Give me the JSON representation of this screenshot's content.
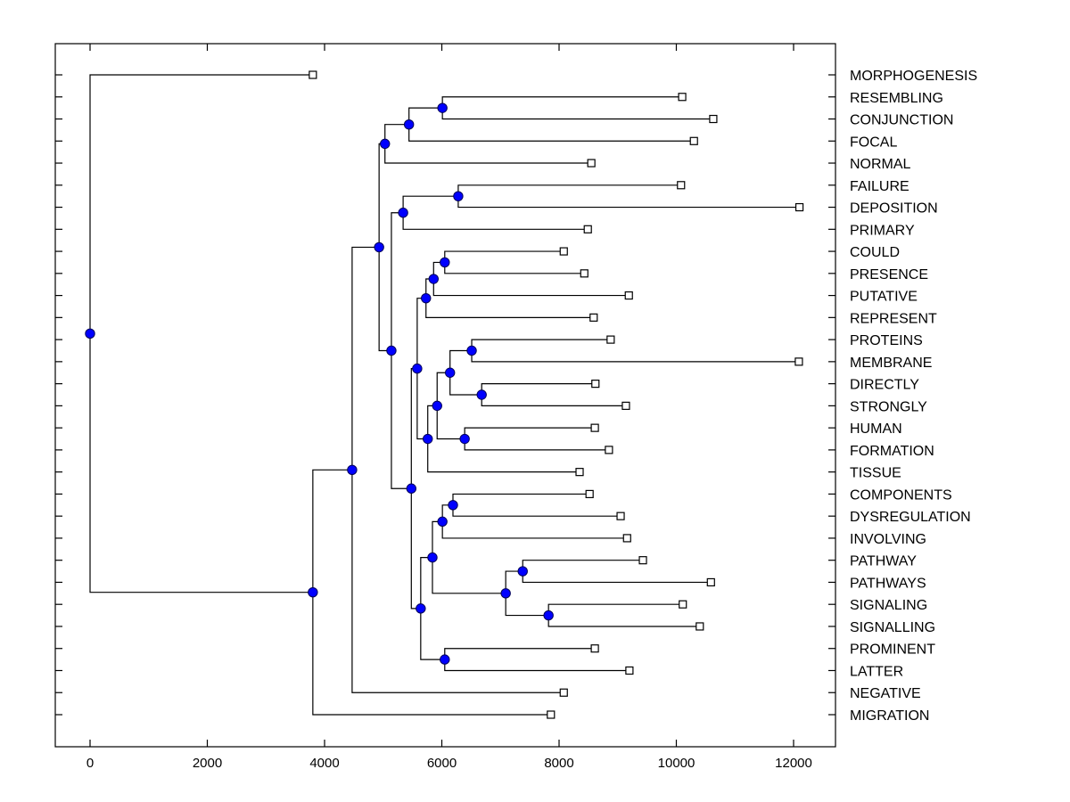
{
  "chart_data": {
    "type": "dendrogram",
    "title": "",
    "xlabel": "",
    "ylabel": "",
    "xlim": [
      -600,
      12700
    ],
    "xticks": [
      0,
      2000,
      4000,
      6000,
      8000,
      10000,
      12000
    ],
    "xtick_labels": [
      "0",
      "2000",
      "4000",
      "6000",
      "8000",
      "10000",
      "12000"
    ],
    "grid": false,
    "leaf_marker": "open-square",
    "node_marker": "blue-circle",
    "node_color": "#0000ff",
    "line_color": "#000000",
    "leaves": [
      {
        "label": "MORPHOGENESIS",
        "value": 3800
      },
      {
        "label": "RESEMBLING",
        "value": 10100
      },
      {
        "label": "CONJUNCTION",
        "value": 10630
      },
      {
        "label": "FOCAL",
        "value": 10300
      },
      {
        "label": "NORMAL",
        "value": 8550
      },
      {
        "label": "FAILURE",
        "value": 10080
      },
      {
        "label": "DEPOSITION",
        "value": 12100
      },
      {
        "label": "PRIMARY",
        "value": 8490
      },
      {
        "label": "COULD",
        "value": 8080
      },
      {
        "label": "PRESENCE",
        "value": 8430
      },
      {
        "label": "PUTATIVE",
        "value": 9190
      },
      {
        "label": "REPRESENT",
        "value": 8590
      },
      {
        "label": "PROTEINS",
        "value": 8880
      },
      {
        "label": "MEMBRANE",
        "value": 12090
      },
      {
        "label": "DIRECTLY",
        "value": 8620
      },
      {
        "label": "STRONGLY",
        "value": 9140
      },
      {
        "label": "HUMAN",
        "value": 8610
      },
      {
        "label": "FORMATION",
        "value": 8850
      },
      {
        "label": "TISSUE",
        "value": 8350
      },
      {
        "label": "COMPONENTS",
        "value": 8520
      },
      {
        "label": "DYSREGULATION",
        "value": 9050
      },
      {
        "label": "INVOLVING",
        "value": 9160
      },
      {
        "label": "PATHWAY",
        "value": 9430
      },
      {
        "label": "PATHWAYS",
        "value": 10590
      },
      {
        "label": "SIGNALING",
        "value": 10110
      },
      {
        "label": "SIGNALLING",
        "value": 10400
      },
      {
        "label": "PROMINENT",
        "value": 8610
      },
      {
        "label": "LATTER",
        "value": 9200
      },
      {
        "label": "NEGATIVE",
        "value": 8080
      },
      {
        "label": "MIGRATION",
        "value": 7860
      }
    ],
    "nodes": [
      {
        "id": "n_resembling_conjunction",
        "value": 6010,
        "children": [
          "L1",
          "L2"
        ]
      },
      {
        "id": "n_focal",
        "value": 5440,
        "children": [
          "n_resembling_conjunction",
          "L3"
        ]
      },
      {
        "id": "n_normal",
        "value": 5030,
        "children": [
          "n_focal",
          "L4"
        ]
      },
      {
        "id": "n_failure_deposition",
        "value": 6280,
        "children": [
          "L5",
          "L6"
        ]
      },
      {
        "id": "n_primary",
        "value": 5340,
        "children": [
          "n_failure_deposition",
          "L7"
        ]
      },
      {
        "id": "n_could_presence",
        "value": 6050,
        "children": [
          "L8",
          "L9"
        ]
      },
      {
        "id": "n_putative",
        "value": 5860,
        "children": [
          "n_could_presence",
          "L10"
        ]
      },
      {
        "id": "n_represent",
        "value": 5730,
        "children": [
          "n_putative",
          "L11"
        ]
      },
      {
        "id": "n_proteins_membrane",
        "value": 6510,
        "children": [
          "L12",
          "L13"
        ]
      },
      {
        "id": "n_directly_strongly",
        "value": 6680,
        "children": [
          "L14",
          "L15"
        ]
      },
      {
        "id": "n_pm_ds",
        "value": 6140,
        "children": [
          "n_proteins_membrane",
          "n_directly_strongly"
        ]
      },
      {
        "id": "n_human_formation",
        "value": 6390,
        "children": [
          "L16",
          "L17"
        ]
      },
      {
        "id": "n_mid_cluster",
        "value": 5920,
        "children": [
          "n_pm_ds",
          "n_human_formation"
        ]
      },
      {
        "id": "n_tissue",
        "value": 5760,
        "children": [
          "n_mid_cluster",
          "L18"
        ]
      },
      {
        "id": "n_could_to_tissue",
        "value": 5580,
        "children": [
          "n_represent",
          "n_tissue"
        ]
      },
      {
        "id": "n_components_dysreg",
        "value": 6190,
        "children": [
          "L19",
          "L20"
        ]
      },
      {
        "id": "n_involving",
        "value": 6010,
        "children": [
          "n_components_dysreg",
          "L21"
        ]
      },
      {
        "id": "n_pathway_pathways",
        "value": 7380,
        "children": [
          "L22",
          "L23"
        ]
      },
      {
        "id": "n_signaling_signalling",
        "value": 7820,
        "children": [
          "L24",
          "L25"
        ]
      },
      {
        "id": "n_path_sig",
        "value": 7090,
        "children": [
          "n_pathway_pathways",
          "n_signaling_signalling"
        ]
      },
      {
        "id": "n_components_to_signalling",
        "value": 5840,
        "children": [
          "n_involving",
          "n_path_sig"
        ]
      },
      {
        "id": "n_prominent_latter",
        "value": 6050,
        "children": [
          "L26",
          "L27"
        ]
      },
      {
        "id": "n_lower_cluster",
        "value": 5640,
        "children": [
          "n_components_to_signalling",
          "n_prominent_latter"
        ]
      },
      {
        "id": "n_could_to_latter",
        "value": 5480,
        "children": [
          "n_could_to_tissue",
          "n_lower_cluster"
        ]
      },
      {
        "id": "n_failure_to_latter",
        "value": 5140,
        "children": [
          "n_primary",
          "n_could_to_latter"
        ]
      },
      {
        "id": "n_resembling_to_latter",
        "value": 4930,
        "children": [
          "n_normal",
          "n_failure_to_latter"
        ]
      },
      {
        "id": "n_negative",
        "value": 4470,
        "children": [
          "n_resembling_to_latter",
          "L28"
        ]
      },
      {
        "id": "n_migration",
        "value": 3800,
        "children": [
          "n_negative",
          "L29"
        ]
      },
      {
        "id": "n_root",
        "value": 0,
        "children": [
          "L0",
          "n_migration"
        ]
      }
    ]
  }
}
